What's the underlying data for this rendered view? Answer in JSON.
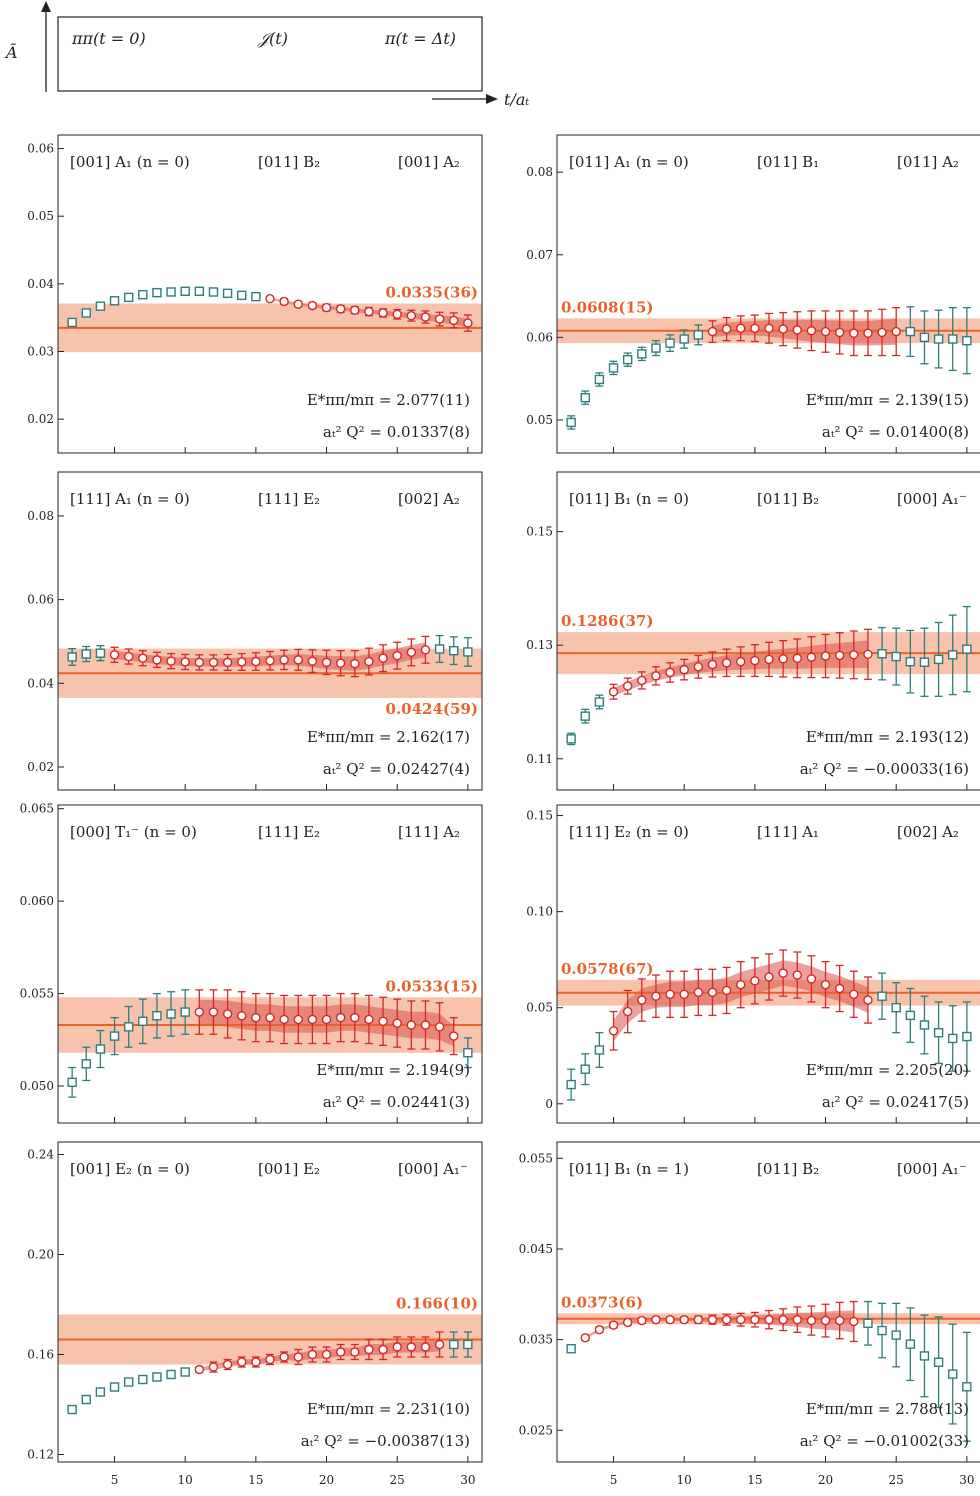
{
  "header": {
    "axis_label": "Ã",
    "box_left": "ππ(t = 0)",
    "box_mid": "𝒥(t)",
    "box_right": "π(t = Δt)",
    "t_axis_label": "t/aₜ"
  },
  "colors": {
    "fit_line": "#e8622c",
    "fit_band": "#f6b89e",
    "curve_band": "#d9534f",
    "used_points": "#d62728",
    "unused_points": "#2e7d7a"
  },
  "chart_data": [
    {
      "type": "scatter",
      "panel": "left-1",
      "labels": [
        "[001] A₁ (n = 0)",
        "[011] B₂",
        "[001] A₂"
      ],
      "fit_value": 0.0335,
      "fit_err": 0.0036,
      "fit_label": "0.0335(36)",
      "ylim": [
        0.015,
        0.062
      ],
      "yticks": [
        0.02,
        0.03,
        0.04,
        0.05,
        0.06
      ],
      "ytick_labels": [
        "0.02",
        "0.03",
        "0.04",
        "0.05",
        "0.06"
      ],
      "xlim": [
        1,
        31
      ],
      "xticks": [
        5,
        10,
        15,
        20,
        25,
        30
      ],
      "fit_range": [
        16,
        30
      ],
      "y": [
        0.0343,
        0.0357,
        0.0367,
        0.0375,
        0.038,
        0.0384,
        0.0387,
        0.0388,
        0.0389,
        0.0389,
        0.0388,
        0.0386,
        0.0383,
        0.0381,
        0.0378,
        0.0374,
        0.037,
        0.0368,
        0.0365,
        0.0363,
        0.0361,
        0.0359,
        0.0357,
        0.0355,
        0.0353,
        0.0351,
        0.0348,
        0.0346,
        0.0342
      ],
      "err": [
        0.0004,
        0.0003,
        0.0003,
        0.0003,
        0.0003,
        0.0003,
        0.0003,
        0.0003,
        0.0003,
        0.0003,
        0.0003,
        0.0003,
        0.0003,
        0.0003,
        0.0003,
        0.0004,
        0.0004,
        0.0004,
        0.0005,
        0.0005,
        0.0005,
        0.0006,
        0.0006,
        0.0007,
        0.0008,
        0.0009,
        0.001,
        0.0011,
        0.0012
      ],
      "E_label": "E*ππ/mπ = 2.077(11)",
      "Q_label": "aₜ² Q² = 0.01337(8)",
      "fitlbl_pos": "above-right"
    },
    {
      "type": "scatter",
      "panel": "right-1",
      "labels": [
        "[011] A₁ (n = 0)",
        "[011] B₁",
        "[011] A₂"
      ],
      "fit_value": 0.0608,
      "fit_err": 0.0015,
      "fit_label": "0.0608(15)",
      "ylim": [
        0.046,
        0.0845
      ],
      "yticks": [
        0.05,
        0.06,
        0.07,
        0.08
      ],
      "ytick_labels": [
        "0.05",
        "0.06",
        "0.07",
        "0.08"
      ],
      "xlim": [
        1,
        31
      ],
      "xticks": [
        5,
        10,
        15,
        20,
        25,
        30
      ],
      "fit_range": [
        12,
        25
      ],
      "y": [
        0.0497,
        0.0527,
        0.0549,
        0.0563,
        0.0573,
        0.058,
        0.0587,
        0.0593,
        0.0598,
        0.0603,
        0.0607,
        0.061,
        0.0611,
        0.0611,
        0.0611,
        0.061,
        0.0609,
        0.0608,
        0.0607,
        0.0606,
        0.0605,
        0.0605,
        0.0606,
        0.0607,
        0.0607,
        0.06,
        0.0598,
        0.0598,
        0.0596
      ],
      "err": [
        0.0008,
        0.0008,
        0.0008,
        0.0008,
        0.0008,
        0.0008,
        0.0009,
        0.001,
        0.0011,
        0.0012,
        0.0013,
        0.0014,
        0.0015,
        0.0016,
        0.0018,
        0.002,
        0.0022,
        0.0024,
        0.0025,
        0.0026,
        0.0027,
        0.0027,
        0.0028,
        0.0029,
        0.003,
        0.0032,
        0.0035,
        0.0038,
        0.004
      ],
      "E_label": "E*ππ/mπ = 2.139(15)",
      "Q_label": "aₜ² Q² = 0.01400(8)",
      "fitlbl_pos": "above-left"
    },
    {
      "type": "scatter",
      "panel": "left-2",
      "labels": [
        "[111] A₁ (n = 0)",
        "[111] E₂",
        "[002] A₂"
      ],
      "fit_value": 0.0424,
      "fit_err": 0.0059,
      "fit_label": "0.0424(59)",
      "ylim": [
        0.0145,
        0.0905
      ],
      "yticks": [
        0.02,
        0.04,
        0.06,
        0.08
      ],
      "ytick_labels": [
        "0.02",
        "0.04",
        "0.06",
        "0.08"
      ],
      "xlim": [
        1,
        31
      ],
      "xticks": [
        5,
        10,
        15,
        20,
        25,
        30
      ],
      "fit_range": [
        5,
        27
      ],
      "y": [
        0.0463,
        0.047,
        0.0472,
        0.0468,
        0.0464,
        0.046,
        0.0456,
        0.0453,
        0.0451,
        0.045,
        0.045,
        0.045,
        0.0451,
        0.0452,
        0.0454,
        0.0456,
        0.0456,
        0.0453,
        0.045,
        0.0448,
        0.0447,
        0.0452,
        0.046,
        0.0466,
        0.0474,
        0.048,
        0.0482,
        0.0478,
        0.0475
      ],
      "err": [
        0.002,
        0.0018,
        0.0018,
        0.0018,
        0.0018,
        0.0018,
        0.0018,
        0.0018,
        0.0018,
        0.0018,
        0.0018,
        0.0019,
        0.002,
        0.0021,
        0.0022,
        0.0023,
        0.0025,
        0.0027,
        0.0029,
        0.003,
        0.0031,
        0.0032,
        0.0032,
        0.0032,
        0.0032,
        0.0032,
        0.0032,
        0.0033,
        0.0034
      ],
      "E_label": "E*ππ/mπ = 2.162(17)",
      "Q_label": "aₜ² Q² = 0.02427(4)",
      "fitlbl_pos": "below-right"
    },
    {
      "type": "scatter",
      "panel": "right-2",
      "labels": [
        "[011] B₁ (n = 0)",
        "[011] B₂",
        "[000] A₁⁻"
      ],
      "fit_value": 0.1286,
      "fit_err": 0.0037,
      "fit_label": "0.1286(37)",
      "ylim": [
        0.1045,
        0.1605
      ],
      "yticks": [
        0.11,
        0.13,
        0.15
      ],
      "ytick_labels": [
        "0.11",
        "0.13",
        "0.15"
      ],
      "xlim": [
        1,
        31
      ],
      "xticks": [
        5,
        10,
        15,
        20,
        25,
        30
      ],
      "fit_range": [
        5,
        23
      ],
      "y": [
        0.1135,
        0.1175,
        0.12,
        0.1218,
        0.1228,
        0.1238,
        0.1246,
        0.1252,
        0.1257,
        0.1262,
        0.1266,
        0.1269,
        0.1271,
        0.1273,
        0.1275,
        0.1276,
        0.1277,
        0.1279,
        0.1281,
        0.1282,
        0.1283,
        0.1284,
        0.1285,
        0.128,
        0.1271,
        0.127,
        0.1275,
        0.1283,
        0.1293
      ],
      "err": [
        0.001,
        0.0012,
        0.0012,
        0.0013,
        0.0014,
        0.0015,
        0.0016,
        0.0017,
        0.0018,
        0.002,
        0.0022,
        0.0024,
        0.0026,
        0.0028,
        0.003,
        0.0032,
        0.0034,
        0.0036,
        0.0038,
        0.004,
        0.0042,
        0.0044,
        0.0046,
        0.005,
        0.0055,
        0.006,
        0.0065,
        0.007,
        0.0075
      ],
      "E_label": "E*ππ/mπ = 2.193(12)",
      "Q_label": "aₜ² Q² = −0.00033(16)",
      "fitlbl_pos": "above-left"
    },
    {
      "type": "scatter",
      "panel": "left-3",
      "labels": [
        "[000] T₁⁻ (n = 0)",
        "[111] E₂",
        "[111] A₂"
      ],
      "fit_value": 0.0533,
      "fit_err": 0.0015,
      "fit_label": "0.0533(15)",
      "ylim": [
        0.048,
        0.0652
      ],
      "yticks": [
        0.05,
        0.055,
        0.06,
        0.065
      ],
      "ytick_labels": [
        "0.050",
        "0.055",
        "0.060",
        "0.065"
      ],
      "xlim": [
        1,
        31
      ],
      "xticks": [
        5,
        10,
        15,
        20,
        25,
        30
      ],
      "fit_range": [
        11,
        29
      ],
      "y": [
        0.0502,
        0.0512,
        0.052,
        0.0527,
        0.0532,
        0.0535,
        0.0538,
        0.0539,
        0.054,
        0.054,
        0.054,
        0.0539,
        0.0538,
        0.0537,
        0.0537,
        0.0536,
        0.0536,
        0.0536,
        0.0536,
        0.0537,
        0.0537,
        0.0536,
        0.0535,
        0.0534,
        0.0533,
        0.0533,
        0.0532,
        0.0527,
        0.0518
      ],
      "err": [
        0.0008,
        0.0009,
        0.001,
        0.001,
        0.0011,
        0.0012,
        0.0012,
        0.0012,
        0.0012,
        0.0012,
        0.0012,
        0.0013,
        0.0013,
        0.0013,
        0.0013,
        0.0013,
        0.0013,
        0.0013,
        0.0013,
        0.0013,
        0.0013,
        0.0013,
        0.0013,
        0.0013,
        0.0013,
        0.0013,
        0.0013,
        0.001,
        0.0008
      ],
      "E_label": "E*ππ/mπ = 2.194(9)",
      "Q_label": "aₜ² Q² = 0.02441(3)",
      "fitlbl_pos": "above-right"
    },
    {
      "type": "scatter",
      "panel": "right-3",
      "labels": [
        "[111] E₂ (n = 0)",
        "[111] A₁",
        "[002] A₂"
      ],
      "fit_value": 0.0578,
      "fit_err": 0.0067,
      "fit_label": "0.0578(67)",
      "ylim": [
        -0.01,
        0.1555
      ],
      "yticks": [
        0,
        0.05,
        0.1,
        0.15
      ],
      "ytick_labels": [
        "0",
        "0.05",
        "0.10",
        "0.15"
      ],
      "xlim": [
        1,
        31
      ],
      "xticks": [
        5,
        10,
        15,
        20,
        25,
        30
      ],
      "fit_range": [
        5,
        23
      ],
      "y": [
        0.01,
        0.018,
        0.028,
        0.038,
        0.048,
        0.054,
        0.056,
        0.057,
        0.057,
        0.058,
        0.058,
        0.059,
        0.062,
        0.064,
        0.066,
        0.068,
        0.067,
        0.065,
        0.062,
        0.06,
        0.057,
        0.054,
        0.056,
        0.05,
        0.046,
        0.041,
        0.037,
        0.034,
        0.035
      ],
      "err": [
        0.008,
        0.008,
        0.009,
        0.01,
        0.011,
        0.011,
        0.011,
        0.012,
        0.012,
        0.012,
        0.012,
        0.012,
        0.012,
        0.012,
        0.012,
        0.012,
        0.012,
        0.012,
        0.012,
        0.012,
        0.012,
        0.012,
        0.012,
        0.013,
        0.014,
        0.015,
        0.016,
        0.017,
        0.018
      ],
      "E_label": "E*ππ/mπ = 2.205(20)",
      "Q_label": "aₜ² Q² = 0.02417(5)",
      "fitlbl_pos": "above-left"
    },
    {
      "type": "scatter",
      "panel": "left-4",
      "labels": [
        "[001] E₂ (n = 0)",
        "[001] E₂",
        "[000] A₁⁻"
      ],
      "fit_value": 0.166,
      "fit_err": 0.01,
      "fit_label": "0.166(10)",
      "ylim": [
        0.117,
        0.245
      ],
      "yticks": [
        0.12,
        0.16,
        0.2,
        0.24
      ],
      "ytick_labels": [
        "0.12",
        "0.16",
        "0.20",
        "0.24"
      ],
      "xlim": [
        1,
        31
      ],
      "xticks": [
        5,
        10,
        15,
        20,
        25,
        30
      ],
      "fit_range": [
        11,
        28
      ],
      "y": [
        0.138,
        0.142,
        0.145,
        0.147,
        0.149,
        0.15,
        0.151,
        0.152,
        0.153,
        0.154,
        0.155,
        0.156,
        0.157,
        0.157,
        0.158,
        0.159,
        0.159,
        0.16,
        0.16,
        0.161,
        0.161,
        0.162,
        0.162,
        0.163,
        0.163,
        0.163,
        0.164,
        0.164,
        0.164
      ],
      "err": [
        0.001,
        0.001,
        0.001,
        0.001,
        0.001,
        0.001,
        0.001,
        0.001,
        0.001,
        0.001,
        0.002,
        0.002,
        0.002,
        0.002,
        0.002,
        0.002,
        0.003,
        0.003,
        0.003,
        0.003,
        0.003,
        0.004,
        0.004,
        0.004,
        0.004,
        0.004,
        0.005,
        0.005,
        0.005
      ],
      "E_label": "E*ππ/mπ = 2.231(10)",
      "Q_label": "aₜ² Q² = −0.00387(13)",
      "fitlbl_pos": "above-right"
    },
    {
      "type": "scatter",
      "panel": "right-4",
      "labels": [
        "[011] B₁ (n = 1)",
        "[011] B₂",
        "[000] A₁⁻"
      ],
      "fit_value": 0.0373,
      "fit_err": 0.0006,
      "fit_label": "0.0373(6)",
      "ylim": [
        0.0215,
        0.0568
      ],
      "yticks": [
        0.025,
        0.035,
        0.045,
        0.055
      ],
      "ytick_labels": [
        "0.025",
        "0.035",
        "0.045",
        "0.055"
      ],
      "xlim": [
        1,
        31
      ],
      "xticks": [
        5,
        10,
        15,
        20,
        25,
        30
      ],
      "fit_range": [
        3,
        22
      ],
      "y": [
        0.034,
        0.0352,
        0.0361,
        0.0366,
        0.0369,
        0.0371,
        0.0372,
        0.0372,
        0.0372,
        0.0372,
        0.0372,
        0.0372,
        0.0372,
        0.0372,
        0.0372,
        0.0372,
        0.0372,
        0.0371,
        0.0371,
        0.0371,
        0.037,
        0.0368,
        0.036,
        0.0355,
        0.0345,
        0.0332,
        0.0325,
        0.0312,
        0.0298
      ],
      "err": [
        0.0003,
        0.0003,
        0.0003,
        0.0003,
        0.0003,
        0.0003,
        0.0003,
        0.0003,
        0.0003,
        0.0004,
        0.0005,
        0.0006,
        0.0007,
        0.0008,
        0.001,
        0.0012,
        0.0014,
        0.0016,
        0.0018,
        0.002,
        0.0022,
        0.0024,
        0.003,
        0.0035,
        0.004,
        0.0045,
        0.005,
        0.0055,
        0.006
      ],
      "E_label": "E*ππ/mπ = 2.788(13)",
      "Q_label": "aₜ² Q² = −0.01002(33)",
      "fitlbl_pos": "above-left"
    }
  ]
}
